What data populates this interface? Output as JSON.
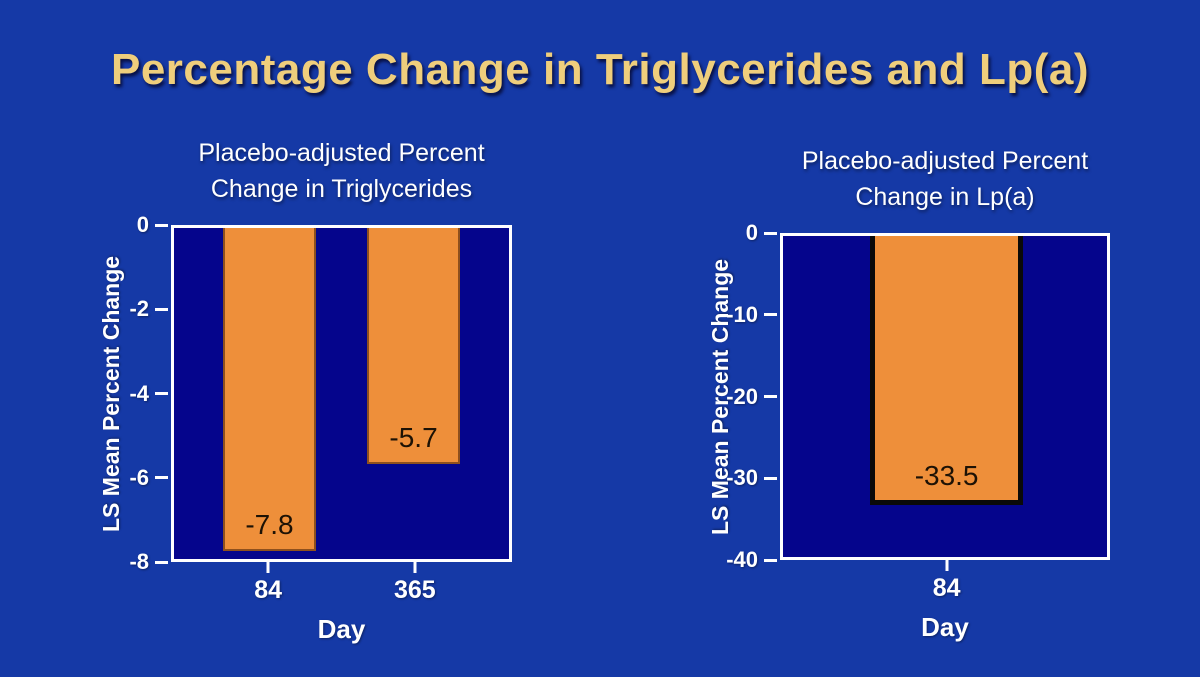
{
  "slide": {
    "title": "Percentage Change in Triglycerides and Lp(a)"
  },
  "colors": {
    "background": "#1539A6",
    "plot_background": "#05058C",
    "bar_orange": "#EE8F3A",
    "title_gold": "#EFCE7C",
    "axis_white": "#FFFFFF",
    "value_label_dark": "#1D1205"
  },
  "chart_data": [
    {
      "type": "bar",
      "title": "Placebo-adjusted Percent\nChange in Triglycerides",
      "categories": [
        "84",
        "365"
      ],
      "values": [
        -7.8,
        -5.7
      ],
      "value_labels": [
        "-7.8",
        "-5.7"
      ],
      "xlabel": "Day",
      "ylabel": "LS Mean Percent Change",
      "ylim": [
        0,
        -8
      ],
      "yticks": [
        0,
        -2,
        -4,
        -6,
        -8
      ],
      "grid": false,
      "legend": false,
      "bar_color": "#EE8F3A",
      "plot_bg": "#05058C",
      "bar_width_pct": 28,
      "bar_centers_pct": [
        28.5,
        71.5
      ]
    },
    {
      "type": "bar",
      "title": "Placebo-adjusted Percent\nChange in Lp(a)",
      "categories": [
        "84"
      ],
      "values": [
        -33.5
      ],
      "value_labels": [
        "-33.5"
      ],
      "xlabel": "Day",
      "ylabel": "LS Mean Percent Change",
      "ylim": [
        0,
        -40
      ],
      "yticks": [
        0,
        -10,
        -20,
        -30,
        -40
      ],
      "grid": false,
      "legend": false,
      "bar_color": "#EE8F3A",
      "plot_bg": "#05058C",
      "bar_width_pct": 47,
      "bar_centers_pct": [
        50.5
      ]
    }
  ]
}
